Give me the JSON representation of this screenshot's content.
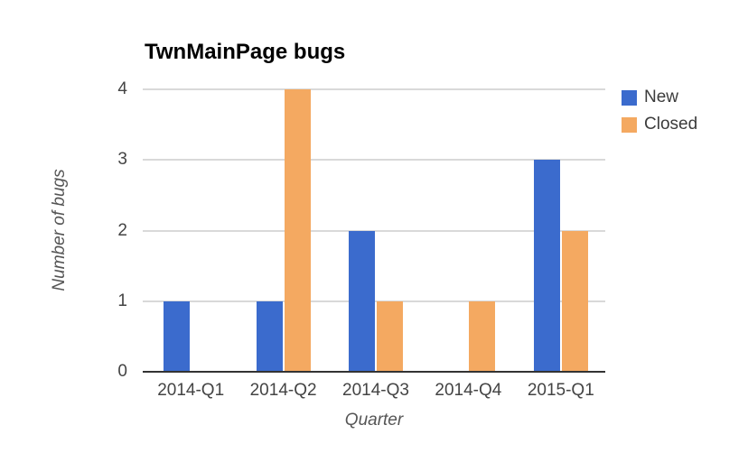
{
  "chart_data": {
    "type": "bar",
    "title": "TwnMainPage bugs",
    "xlabel": "Quarter",
    "ylabel": "Number of bugs",
    "categories": [
      "2014-Q1",
      "2014-Q2",
      "2014-Q3",
      "2014-Q4",
      "2015-Q1"
    ],
    "series": [
      {
        "name": "New",
        "color": "#3b6bcd",
        "values": [
          1,
          1,
          2,
          0,
          3
        ]
      },
      {
        "name": "Closed",
        "color": "#f4a961",
        "values": [
          0,
          4,
          1,
          1,
          2
        ]
      }
    ],
    "ylim": [
      0,
      4
    ],
    "yticks": [
      0,
      1,
      2,
      3,
      4
    ],
    "grid": true,
    "legend_position": "top-right",
    "colors": {
      "gridline": "#d9d9d9",
      "axis_line": "#333333",
      "tick_text": "#444444",
      "axis_title_text": "#555555",
      "title_text": "#000000",
      "background": "#ffffff"
    }
  }
}
